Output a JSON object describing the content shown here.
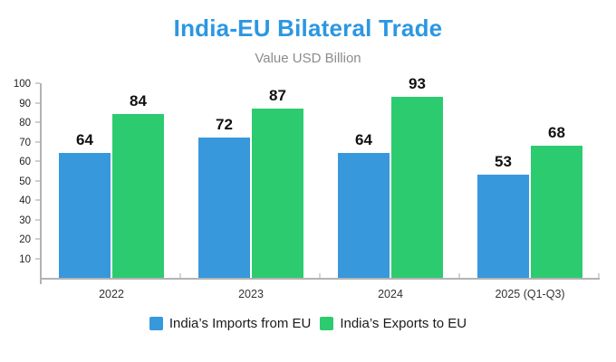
{
  "chart_data": {
    "type": "bar",
    "title": "India-EU Bilateral Trade",
    "subtitle": "Value USD Billion",
    "categories": [
      "2022",
      "2023",
      "2024",
      "2025 (Q1-Q3)"
    ],
    "series": [
      {
        "name": "India’s Imports from EU",
        "key": "imports",
        "color": "#3798DC",
        "values": [
          64,
          72,
          64,
          53
        ]
      },
      {
        "name": "India’s Exports to EU",
        "key": "exports",
        "color": "#2DCB70",
        "values": [
          84,
          87,
          93,
          68
        ]
      }
    ],
    "xlabel": "",
    "ylabel": "",
    "ylim": [
      0,
      100
    ],
    "yticks": [
      10,
      20,
      30,
      40,
      50,
      60,
      70,
      80,
      90,
      100
    ],
    "grid": false,
    "legend_position": "bottom"
  },
  "colors": {
    "title": "#2C97E2",
    "subtitle": "#8C8C8C",
    "axis": "#B3B3B3",
    "tick_label": "#222222",
    "x_label": "#333333",
    "value_label": "#111111",
    "legend_text": "#1A1A1A",
    "background": "#FFFFFF"
  }
}
